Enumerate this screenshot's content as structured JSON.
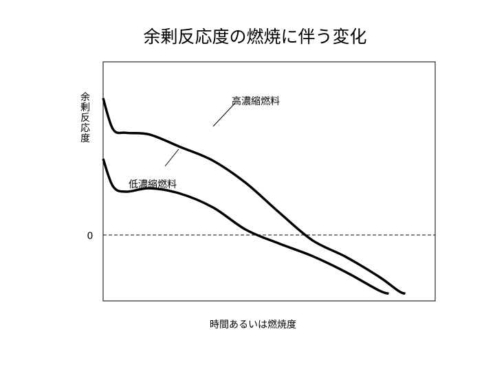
{
  "chart_data": {
    "type": "line",
    "title": "余剰反応度の燃焼に伴う変化",
    "xlabel": "時間あるいは燃焼度",
    "ylabel": "余剰反応度",
    "zero_label": "0",
    "x_range": [
      0,
      1
    ],
    "y_range": [
      -1,
      1
    ],
    "grid": false,
    "series": [
      {
        "name": "高濃縮燃料",
        "color": "#000000",
        "points": [
          [
            0.0,
            0.79
          ],
          [
            0.03,
            0.61
          ],
          [
            0.07,
            0.59
          ],
          [
            0.14,
            0.58
          ],
          [
            0.23,
            0.51
          ],
          [
            0.33,
            0.43
          ],
          [
            0.43,
            0.3
          ],
          [
            0.53,
            0.13
          ],
          [
            0.63,
            -0.08
          ],
          [
            0.73,
            -0.33
          ],
          [
            0.83,
            -0.63
          ],
          [
            0.89,
            -0.85
          ],
          [
            0.91,
            -0.89
          ]
        ]
      },
      {
        "name": "低濃縮燃料",
        "color": "#000000",
        "points": [
          [
            0.0,
            0.44
          ],
          [
            0.03,
            0.28
          ],
          [
            0.07,
            0.25
          ],
          [
            0.14,
            0.27
          ],
          [
            0.23,
            0.24
          ],
          [
            0.33,
            0.16
          ],
          [
            0.43,
            0.03
          ],
          [
            0.53,
            -0.13
          ],
          [
            0.63,
            -0.32
          ],
          [
            0.73,
            -0.56
          ],
          [
            0.83,
            -0.84
          ],
          [
            0.86,
            -0.89
          ]
        ]
      }
    ]
  }
}
